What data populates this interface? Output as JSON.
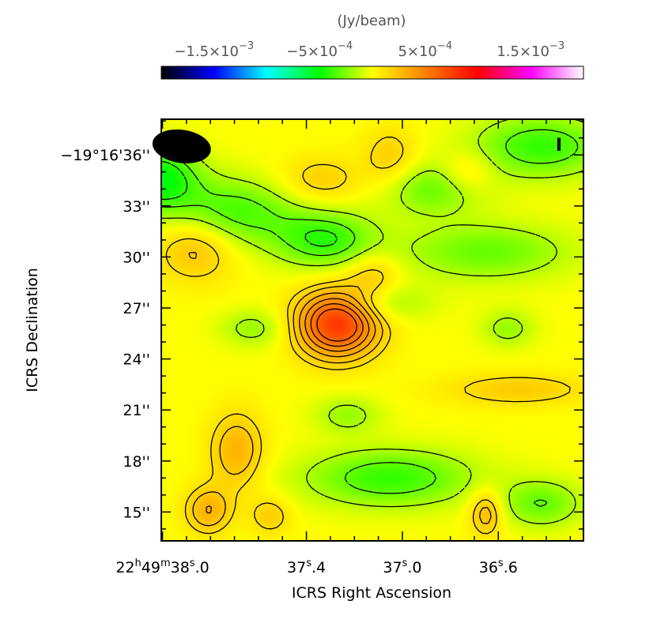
{
  "chart_data": {
    "type": "heatmap",
    "title": "",
    "xlabel": "ICRS Right Ascension",
    "ylabel": "ICRS Declination",
    "colorbar": {
      "label": "(Jy/beam)",
      "range": [
        -0.002,
        0.002
      ],
      "colors": [
        "#000000",
        "#0000ff",
        "#00ffff",
        "#00ff00",
        "#ffff00",
        "#ff8000",
        "#ff0000",
        "#ff00ff",
        "#ffffff"
      ],
      "ticks": [
        {
          "value": -0.0015,
          "mantissa": "−1.5×10",
          "exp": "−3"
        },
        {
          "value": -0.0005,
          "mantissa": "−5×10",
          "exp": "−4"
        },
        {
          "value": 0.0005,
          "mantissa": "5×10",
          "exp": "−4"
        },
        {
          "value": 0.0015,
          "mantissa": "1.5×10",
          "exp": "−3"
        }
      ]
    },
    "x_axis": {
      "unit": "seconds of RA",
      "range": [
        38.005,
        36.245
      ],
      "direction": "decreasing to the right",
      "ticks": [
        {
          "value": 38.0,
          "label_prefix": "22",
          "label_h": "h",
          "label_mid1": "49",
          "label_m": "m",
          "label_mid2": "38",
          "label_s": "s",
          "label_suffix": ".0"
        },
        {
          "value": 37.4,
          "label_prefix": "",
          "label_h": "",
          "label_mid1": "",
          "label_m": "",
          "label_mid2": "37",
          "label_s": "s",
          "label_suffix": ".4"
        },
        {
          "value": 37.0,
          "label_prefix": "",
          "label_h": "",
          "label_mid1": "",
          "label_m": "",
          "label_mid2": "37",
          "label_s": "s",
          "label_suffix": ".0"
        },
        {
          "value": 36.6,
          "label_prefix": "",
          "label_h": "",
          "label_mid1": "",
          "label_m": "",
          "label_mid2": "36",
          "label_s": "s",
          "label_suffix": ".6"
        }
      ],
      "minor_step": 0.1
    },
    "y_axis": {
      "unit": "arcsec offset",
      "range": [
        38.1,
        13.3
      ],
      "direction": "increasing downward",
      "ticks": [
        {
          "value": 15,
          "label": "15''"
        },
        {
          "value": 18,
          "label": "18''"
        },
        {
          "value": 21,
          "label": "21''"
        },
        {
          "value": 24,
          "label": "24''"
        },
        {
          "value": 27,
          "label": "27''"
        },
        {
          "value": 30,
          "label": "30''"
        },
        {
          "value": 33,
          "label": "33''"
        },
        {
          "value": 36,
          "label": "−19°16'36''"
        }
      ],
      "minor_step": 1
    },
    "background_value": 0.0,
    "peak": {
      "ra_s": 37.26,
      "dec_arcsec": 26.0,
      "value": 0.0008
    },
    "features": [
      {
        "ra_s": 37.27,
        "dec_arcsec": 26.1,
        "value": 0.0008,
        "sx": 0.12,
        "sy": 1.4
      },
      {
        "ra_s": 37.12,
        "dec_arcsec": 29.0,
        "value": 0.0002,
        "sx": 0.08,
        "sy": 1.0
      },
      {
        "ra_s": 37.05,
        "dec_arcsec": 17.0,
        "value": -0.0004,
        "sx": 0.25,
        "sy": 1.2
      },
      {
        "ra_s": 37.32,
        "dec_arcsec": 31.0,
        "value": -0.0004,
        "sx": 0.15,
        "sy": 1.2
      },
      {
        "ra_s": 37.73,
        "dec_arcsec": 32.6,
        "value": -0.0004,
        "sx": 0.2,
        "sy": 1.4
      },
      {
        "ra_s": 38.02,
        "dec_arcsec": 34.7,
        "value": -0.0005,
        "sx": 0.12,
        "sy": 1.3
      },
      {
        "ra_s": 36.42,
        "dec_arcsec": 36.5,
        "value": -0.0004,
        "sx": 0.2,
        "sy": 1.3
      },
      {
        "ra_s": 36.65,
        "dec_arcsec": 30.3,
        "value": -0.0003,
        "sx": 0.25,
        "sy": 1.2
      },
      {
        "ra_s": 36.87,
        "dec_arcsec": 34.0,
        "value": -0.0003,
        "sx": 0.15,
        "sy": 1.1
      },
      {
        "ra_s": 36.42,
        "dec_arcsec": 15.5,
        "value": -0.0003,
        "sx": 0.12,
        "sy": 1.0
      },
      {
        "ra_s": 37.08,
        "dec_arcsec": 27.3,
        "value": -0.0002,
        "sx": 0.14,
        "sy": 0.8
      },
      {
        "ra_s": 37.86,
        "dec_arcsec": 30.8,
        "value": 0.0003,
        "sx": 0.12,
        "sy": 1.5
      },
      {
        "ra_s": 37.69,
        "dec_arcsec": 18.6,
        "value": 0.0003,
        "sx": 0.08,
        "sy": 1.6
      },
      {
        "ra_s": 36.65,
        "dec_arcsec": 15.0,
        "value": 0.0003,
        "sx": 0.05,
        "sy": 1.0
      },
      {
        "ra_s": 36.52,
        "dec_arcsec": 22.2,
        "value": 0.0002,
        "sx": 0.22,
        "sy": 0.7
      },
      {
        "ra_s": 37.81,
        "dec_arcsec": 15.1,
        "value": 0.0003,
        "sx": 0.07,
        "sy": 1.0
      },
      {
        "ra_s": 37.34,
        "dec_arcsec": 34.5,
        "value": 0.0002,
        "sx": 0.12,
        "sy": 1.0
      },
      {
        "ra_s": 37.05,
        "dec_arcsec": 35.8,
        "value": 0.0002,
        "sx": 0.08,
        "sy": 1.3
      },
      {
        "ra_s": 36.73,
        "dec_arcsec": 34.9,
        "value": 0.0002,
        "sx": 0.08,
        "sy": 0.9
      },
      {
        "ra_s": 37.55,
        "dec_arcsec": 14.8,
        "value": 0.0002,
        "sx": 0.06,
        "sy": 0.8
      },
      {
        "ra_s": 37.23,
        "dec_arcsec": 20.7,
        "value": -0.0002,
        "sx": 0.1,
        "sy": 0.8
      },
      {
        "ra_s": 37.62,
        "dec_arcsec": 25.8,
        "value": -0.0002,
        "sx": 0.1,
        "sy": 0.8
      },
      {
        "ra_s": 36.56,
        "dec_arcsec": 25.8,
        "value": -0.0002,
        "sx": 0.08,
        "sy": 0.8
      }
    ],
    "beam": {
      "ra_s": 37.92,
      "dec_arcsec": 36.5,
      "major_arcsec": 2.4,
      "minor_arcsec": 1.95,
      "color": "#000000"
    },
    "stokes_label": "I"
  }
}
